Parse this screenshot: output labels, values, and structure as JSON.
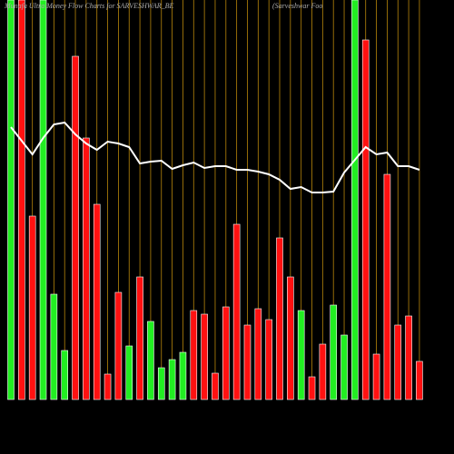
{
  "chart_data": {
    "type": "bar",
    "title": "Munafa Ultra Money Flow Charts for SARVESHWAR_BE",
    "subtitle": "(Sarveshwar Foo",
    "ylim": [
      0,
      440
    ],
    "values": [
      440,
      440,
      202,
      440,
      116,
      54,
      378,
      288,
      215,
      28,
      118,
      59,
      135,
      86,
      35,
      44,
      52,
      98,
      94,
      29,
      102,
      193,
      82,
      100,
      88,
      178,
      135,
      98,
      25,
      61,
      104,
      71,
      440,
      396,
      50,
      248,
      82,
      92,
      42
    ],
    "colors": [
      "#22ee22",
      "#ff1111",
      "#ff1111",
      "#22ee22",
      "#22ee22",
      "#22ee22",
      "#ff1111",
      "#ff1111",
      "#ff1111",
      "#ff1111",
      "#ff1111",
      "#22ee22",
      "#ff1111",
      "#22ee22",
      "#22ee22",
      "#22ee22",
      "#22ee22",
      "#ff1111",
      "#ff1111",
      "#ff1111",
      "#ff1111",
      "#ff1111",
      "#ff1111",
      "#ff1111",
      "#ff1111",
      "#ff1111",
      "#ff1111",
      "#22ee22",
      "#ff1111",
      "#ff1111",
      "#22ee22",
      "#22ee22",
      "#22ee22",
      "#ff1111",
      "#ff1111",
      "#ff1111",
      "#ff1111",
      "#ff1111",
      "#ff1111"
    ],
    "line": {
      "color": "#ffffff",
      "values": [
        300,
        285,
        270,
        288,
        303,
        305,
        292,
        282,
        275,
        284,
        282,
        278,
        260,
        262,
        263,
        254,
        258,
        261,
        255,
        257,
        257,
        253,
        253,
        251,
        248,
        242,
        232,
        234,
        228,
        228,
        229,
        250,
        264,
        278,
        270,
        272,
        257,
        257,
        253
      ]
    },
    "grid": true,
    "grid_color": "#b8860b"
  }
}
